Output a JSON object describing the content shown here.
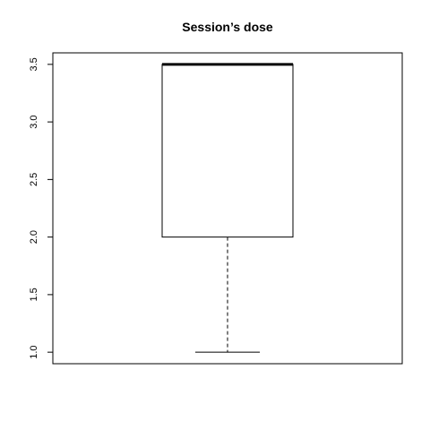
{
  "chart_data": {
    "type": "box",
    "title": "Session’s dose",
    "xlabel": "",
    "ylabel": "",
    "ylim": [
      0.9,
      3.6
    ],
    "y_ticks": [
      1.0,
      1.5,
      2.0,
      2.5,
      3.0,
      3.5
    ],
    "y_tick_labels": [
      "1.0",
      "1.5",
      "2.0",
      "2.5",
      "3.0",
      "3.5"
    ],
    "box": {
      "min": 1.0,
      "q1": 2.0,
      "median": 3.5,
      "q3": 3.5,
      "max": 3.5
    },
    "grid": false,
    "legend": false
  }
}
